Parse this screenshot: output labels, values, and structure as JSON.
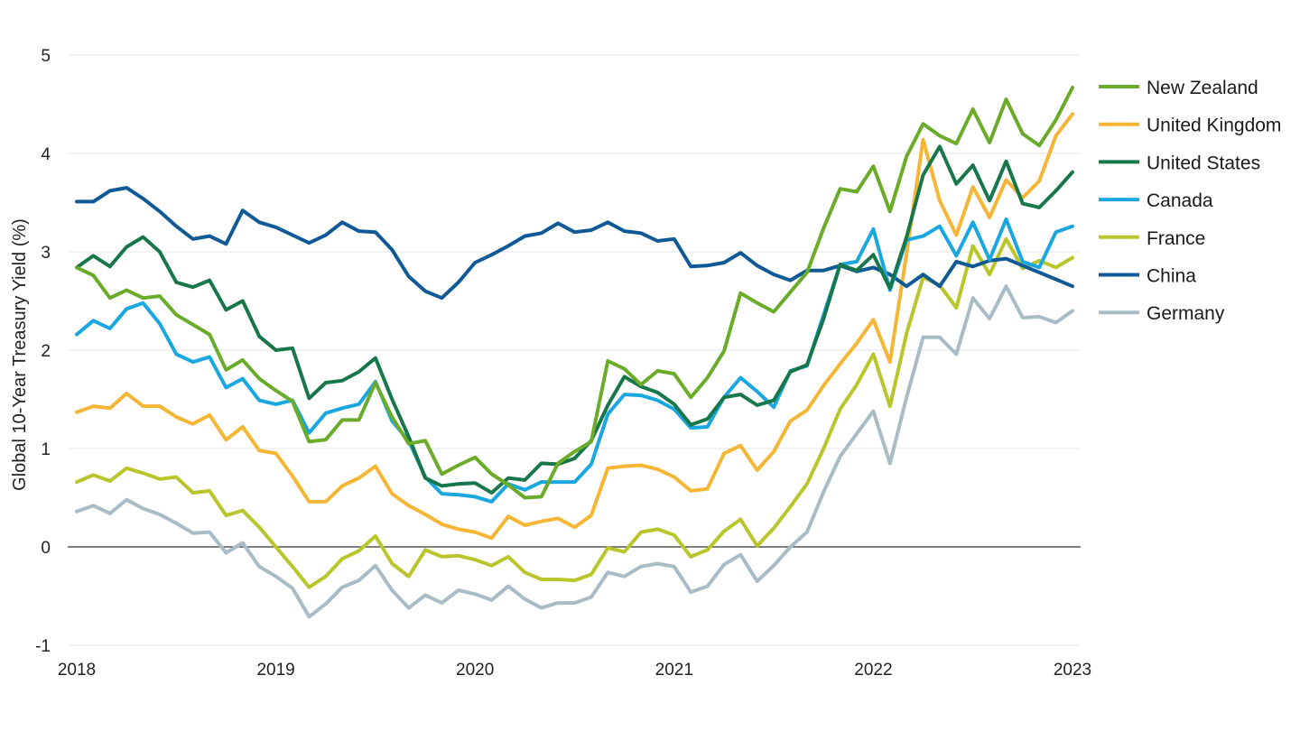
{
  "chart_data": {
    "type": "line",
    "ylabel": "Global 10-Year Treasury Yield (%)",
    "xlabel": "",
    "x_start": "2018-01",
    "x_step": "monthly",
    "x_ticks": [
      "2018",
      "2019",
      "2020",
      "2021",
      "2022",
      "2023"
    ],
    "y_ticks": [
      "5",
      "4",
      "3",
      "2",
      "1",
      "0",
      "-1"
    ],
    "ylim": [
      -1,
      5
    ],
    "grid": true,
    "zero_line": true,
    "legend_position": "right",
    "series": [
      {
        "name": "New Zealand",
        "color": "#6aab2a",
        "values": [
          2.84,
          2.76,
          2.53,
          2.61,
          2.53,
          2.55,
          2.36,
          2.26,
          2.16,
          1.8,
          1.9,
          1.71,
          1.59,
          1.48,
          1.07,
          1.09,
          1.29,
          1.29,
          1.67,
          1.32,
          1.05,
          1.08,
          0.74,
          0.83,
          0.91,
          0.74,
          0.63,
          0.5,
          0.51,
          0.85,
          0.97,
          1.07,
          1.89,
          1.81,
          1.65,
          1.79,
          1.76,
          1.52,
          1.72,
          1.99,
          2.58,
          2.48,
          2.39,
          2.59,
          2.79,
          3.24,
          3.64,
          3.61,
          3.87,
          3.41,
          3.97,
          4.3,
          4.18,
          4.1,
          4.45,
          4.11,
          4.55,
          4.2,
          4.08,
          4.34,
          4.67
        ]
      },
      {
        "name": "United Kingdom",
        "color": "#f5b535",
        "values": [
          1.37,
          1.43,
          1.41,
          1.56,
          1.43,
          1.43,
          1.32,
          1.25,
          1.34,
          1.09,
          1.22,
          0.98,
          0.95,
          0.72,
          0.46,
          0.46,
          0.62,
          0.7,
          0.82,
          0.54,
          0.42,
          0.33,
          0.23,
          0.18,
          0.15,
          0.09,
          0.31,
          0.22,
          0.26,
          0.29,
          0.2,
          0.32,
          0.8,
          0.82,
          0.83,
          0.79,
          0.71,
          0.57,
          0.59,
          0.95,
          1.03,
          0.78,
          0.97,
          1.28,
          1.39,
          1.64,
          1.86,
          2.07,
          2.31,
          1.88,
          2.98,
          4.14,
          3.52,
          3.17,
          3.66,
          3.35,
          3.73,
          3.55,
          3.72,
          4.18,
          4.4
        ]
      },
      {
        "name": "United States",
        "color": "#17774b",
        "values": [
          2.84,
          2.96,
          2.85,
          3.05,
          3.15,
          3.0,
          2.69,
          2.64,
          2.71,
          2.41,
          2.5,
          2.14,
          2.0,
          2.02,
          1.51,
          1.67,
          1.69,
          1.78,
          1.92,
          1.5,
          1.12,
          0.7,
          0.62,
          0.64,
          0.65,
          0.55,
          0.7,
          0.68,
          0.85,
          0.84,
          0.9,
          1.08,
          1.44,
          1.73,
          1.63,
          1.57,
          1.45,
          1.24,
          1.3,
          1.52,
          1.55,
          1.44,
          1.49,
          1.78,
          1.85,
          2.32,
          2.87,
          2.81,
          2.97,
          2.63,
          3.15,
          3.78,
          4.07,
          3.69,
          3.88,
          3.52,
          3.92,
          3.49,
          3.45,
          3.62,
          3.81
        ]
      },
      {
        "name": "Canada",
        "color": "#1aa7e0",
        "values": [
          2.16,
          2.3,
          2.22,
          2.42,
          2.48,
          2.27,
          1.96,
          1.88,
          1.93,
          1.62,
          1.71,
          1.49,
          1.45,
          1.49,
          1.16,
          1.36,
          1.41,
          1.45,
          1.68,
          1.28,
          1.08,
          0.71,
          0.54,
          0.53,
          0.51,
          0.46,
          0.64,
          0.58,
          0.66,
          0.66,
          0.66,
          0.84,
          1.35,
          1.55,
          1.54,
          1.49,
          1.4,
          1.21,
          1.22,
          1.52,
          1.72,
          1.58,
          1.42,
          1.79,
          1.84,
          2.36,
          2.87,
          2.9,
          3.23,
          2.61,
          3.12,
          3.16,
          3.26,
          2.96,
          3.3,
          2.92,
          3.33,
          2.9,
          2.84,
          3.2,
          3.26
        ]
      },
      {
        "name": "France",
        "color": "#b9c62b",
        "values": [
          0.66,
          0.73,
          0.67,
          0.8,
          0.75,
          0.69,
          0.71,
          0.55,
          0.57,
          0.32,
          0.37,
          0.2,
          0.0,
          -0.2,
          -0.41,
          -0.3,
          -0.12,
          -0.04,
          0.11,
          -0.17,
          -0.3,
          -0.03,
          -0.1,
          -0.09,
          -0.13,
          -0.19,
          -0.1,
          -0.26,
          -0.33,
          -0.33,
          -0.34,
          -0.28,
          -0.01,
          -0.05,
          0.15,
          0.18,
          0.12,
          -0.1,
          -0.03,
          0.16,
          0.28,
          0.01,
          0.19,
          0.41,
          0.64,
          1.0,
          1.4,
          1.65,
          1.96,
          1.43,
          2.17,
          2.74,
          2.66,
          2.43,
          3.06,
          2.77,
          3.13,
          2.83,
          2.91,
          2.84,
          2.94
        ]
      },
      {
        "name": "China",
        "color": "#0f5a96",
        "values": [
          3.51,
          3.51,
          3.62,
          3.65,
          3.54,
          3.41,
          3.26,
          3.13,
          3.16,
          3.08,
          3.42,
          3.3,
          3.25,
          3.17,
          3.09,
          3.17,
          3.3,
          3.21,
          3.2,
          3.02,
          2.75,
          2.6,
          2.53,
          2.69,
          2.89,
          2.97,
          3.06,
          3.16,
          3.19,
          3.29,
          3.2,
          3.22,
          3.3,
          3.21,
          3.19,
          3.11,
          3.13,
          2.85,
          2.86,
          2.89,
          2.99,
          2.86,
          2.77,
          2.71,
          2.81,
          2.81,
          2.86,
          2.8,
          2.84,
          2.77,
          2.65,
          2.77,
          2.65,
          2.9,
          2.85,
          2.91,
          2.93,
          2.86,
          2.79,
          2.72,
          2.65
        ]
      },
      {
        "name": "Germany",
        "color": "#a9bcc5",
        "values": [
          0.36,
          0.42,
          0.34,
          0.48,
          0.39,
          0.33,
          0.24,
          0.14,
          0.15,
          -0.06,
          0.04,
          -0.2,
          -0.3,
          -0.42,
          -0.71,
          -0.58,
          -0.41,
          -0.34,
          -0.19,
          -0.44,
          -0.62,
          -0.49,
          -0.57,
          -0.44,
          -0.48,
          -0.54,
          -0.4,
          -0.53,
          -0.62,
          -0.57,
          -0.57,
          -0.51,
          -0.26,
          -0.3,
          -0.2,
          -0.17,
          -0.2,
          -0.46,
          -0.4,
          -0.18,
          -0.08,
          -0.35,
          -0.19,
          0.0,
          0.15,
          0.56,
          0.92,
          1.15,
          1.38,
          0.85,
          1.52,
          2.13,
          2.13,
          1.96,
          2.53,
          2.32,
          2.65,
          2.33,
          2.34,
          2.28,
          2.4
        ]
      }
    ]
  }
}
